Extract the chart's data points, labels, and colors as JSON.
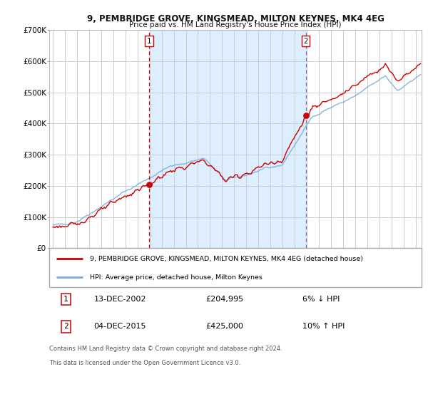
{
  "title": "9, PEMBRIDGE GROVE, KINGSMEAD, MILTON KEYNES, MK4 4EG",
  "subtitle": "Price paid vs. HM Land Registry's House Price Index (HPI)",
  "legend_line1": "9, PEMBRIDGE GROVE, KINGSMEAD, MILTON KEYNES, MK4 4EG (detached house)",
  "legend_line2": "HPI: Average price, detached house, Milton Keynes",
  "purchase1_date": "13-DEC-2002",
  "purchase1_price": 204995,
  "purchase1_pct": "6%",
  "purchase1_dir": "↓",
  "purchase2_date": "04-DEC-2015",
  "purchase2_price": 425000,
  "purchase2_pct": "10%",
  "purchase2_dir": "↑",
  "footnote1": "Contains HM Land Registry data © Crown copyright and database right 2024.",
  "footnote2": "This data is licensed under the Open Government Licence v3.0.",
  "hpi_color": "#7aaddb",
  "price_color": "#cc0000",
  "vline1_color": "#cc0000",
  "vline2_color": "#7777aa",
  "bg_color": "#ddeeff",
  "plot_bg": "#ffffff",
  "grid_color": "#cccccc",
  "ylim": [
    0,
    700000
  ],
  "yticks": [
    0,
    100000,
    200000,
    300000,
    400000,
    500000,
    600000,
    700000
  ],
  "ytick_labels": [
    "£0",
    "£100K",
    "£200K",
    "£300K",
    "£400K",
    "£500K",
    "£600K",
    "£700K"
  ],
  "purchase1_x": 2002.96,
  "purchase2_x": 2015.92,
  "xmin": 1994.7,
  "xmax": 2025.5
}
